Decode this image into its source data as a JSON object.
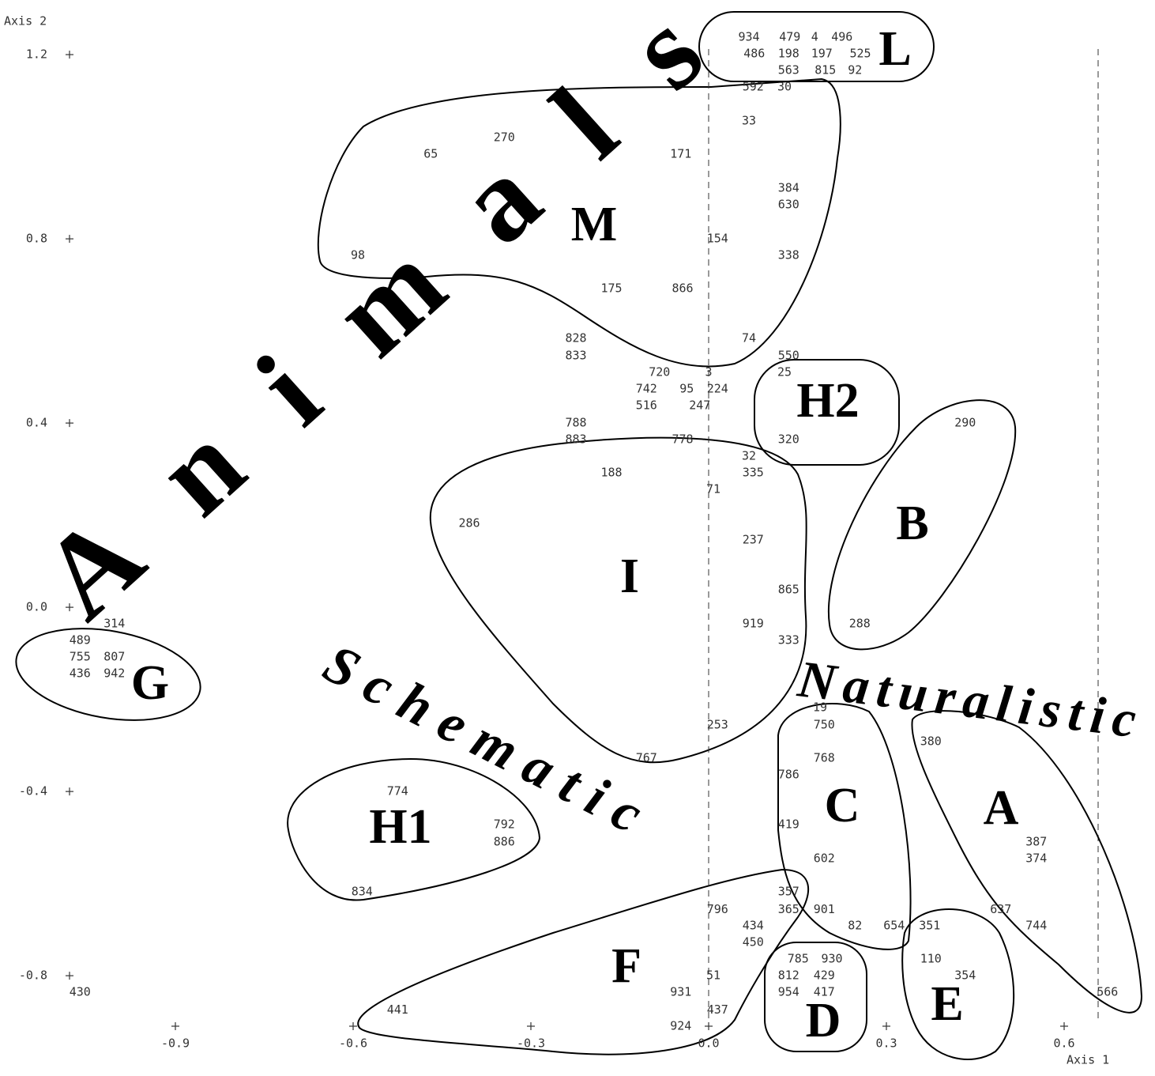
{
  "chart_data": {
    "type": "scatter",
    "x_label": "Axis 1",
    "y_label": "Axis 2",
    "xlim": [
      -1.19,
      0.75
    ],
    "ylim": [
      -0.98,
      1.31
    ],
    "xticks": [
      {
        "value": -0.9,
        "label": "-0.9"
      },
      {
        "value": -0.6,
        "label": "-0.6"
      },
      {
        "value": -0.3,
        "label": "-0.3"
      },
      {
        "value": 0,
        "label": "0.0"
      },
      0.3,
      0.6
    ],
    "yticks": [
      1.2,
      0.8,
      0.4,
      {
        "value": 0,
        "label": "0.0"
      },
      {
        "value": -0.4,
        "label": "-0.4"
      },
      {
        "value": -0.8,
        "label": "-0.8"
      }
    ],
    "point_labels": [
      "934",
      "479",
      "4",
      "496",
      "486",
      "198",
      "197",
      "525",
      "563",
      "815",
      "92",
      "592",
      "30",
      "33",
      "270",
      "65",
      "171",
      "384",
      "630",
      "154",
      "98",
      "338",
      "175",
      "866",
      "828",
      "74",
      "833",
      "550",
      "720",
      "3",
      "25",
      "742",
      "95",
      "224",
      "516",
      "247",
      "788",
      "290",
      "883",
      "778",
      "320",
      "32",
      "188",
      "335",
      "71",
      "286",
      "237",
      "865",
      "314",
      "919",
      "288",
      "489",
      "333",
      "755",
      "807",
      "436",
      "942",
      "19",
      "253",
      "750",
      "380",
      "767",
      "768",
      "786",
      "774",
      "792",
      "419",
      "886",
      "387",
      "602",
      "374",
      "834",
      "357",
      "796",
      "365",
      "901",
      "637",
      "434",
      "82",
      "654",
      "351",
      "744",
      "450",
      "785",
      "930",
      "110",
      "51",
      "812",
      "429",
      "354",
      "430",
      "931",
      "954",
      "417",
      "566",
      "441",
      "437",
      "924"
    ],
    "x": [
      0.068,
      0.137,
      0.179,
      0.225,
      0.077,
      0.135,
      0.191,
      0.256,
      0.135,
      0.197,
      0.247,
      0.075,
      0.128,
      0.068,
      -0.345,
      -0.469,
      -0.047,
      0.135,
      0.135,
      0.015,
      -0.592,
      0.135,
      -0.164,
      -0.044,
      -0.224,
      0.068,
      -0.224,
      0.135,
      -0.083,
      0,
      0.128,
      -0.105,
      -0.037,
      0.015,
      -0.105,
      -0.015,
      -0.224,
      0.433,
      -0.224,
      -0.044,
      0.135,
      0.068,
      -0.164,
      0.075,
      0.008,
      -0.404,
      0.075,
      0.135,
      -1.003,
      0.075,
      0.255,
      -1.061,
      0.135,
      -1.061,
      -1.003,
      -1.061,
      -1.003,
      0.188,
      0.015,
      0.195,
      0.375,
      -0.105,
      0.195,
      0.135,
      -0.525,
      -0.345,
      0.135,
      -0.345,
      0.553,
      0.195,
      0.553,
      -0.585,
      0.135,
      0.015,
      0.135,
      0.195,
      0.493,
      0.075,
      0.247,
      0.313,
      0.373,
      0.553,
      0.075,
      0.151,
      0.208,
      0.375,
      0.008,
      0.135,
      0.195,
      0.433,
      -1.061,
      -0.047,
      0.135,
      0.195,
      0.673,
      -0.525,
      0.015,
      -0.047
    ],
    "values": [
      1.238,
      1.238,
      1.238,
      1.238,
      1.202,
      1.202,
      1.202,
      1.202,
      1.166,
      1.166,
      1.166,
      1.13,
      1.13,
      1.056,
      1.02,
      0.984,
      0.984,
      0.91,
      0.874,
      0.8,
      0.764,
      0.764,
      0.692,
      0.692,
      0.584,
      0.584,
      0.546,
      0.546,
      0.51,
      0.51,
      0.51,
      0.474,
      0.474,
      0.474,
      0.438,
      0.438,
      0.4,
      0.4,
      0.364,
      0.364,
      0.364,
      0.328,
      0.292,
      0.292,
      0.256,
      0.182,
      0.146,
      0.038,
      -0.036,
      -0.036,
      -0.036,
      -0.072,
      -0.072,
      -0.108,
      -0.108,
      -0.144,
      -0.144,
      -0.218,
      -0.256,
      -0.256,
      -0.292,
      -0.328,
      -0.328,
      -0.364,
      -0.4,
      -0.472,
      -0.472,
      -0.51,
      -0.51,
      -0.546,
      -0.546,
      -0.618,
      -0.618,
      -0.656,
      -0.656,
      -0.656,
      -0.656,
      -0.692,
      -0.692,
      -0.692,
      -0.692,
      -0.692,
      -0.728,
      -0.764,
      -0.764,
      -0.764,
      -0.8,
      -0.8,
      -0.8,
      -0.8,
      -0.836,
      -0.836,
      -0.836,
      -0.836,
      -0.836,
      -0.874,
      -0.874,
      -0.91
    ],
    "clusters": [
      "L",
      "M",
      "H2",
      "B",
      "I",
      "G",
      "H1",
      "C",
      "A",
      "F",
      "D",
      "E"
    ],
    "annotations": [
      "Animals",
      "Schematic",
      "Naturalistic"
    ]
  }
}
